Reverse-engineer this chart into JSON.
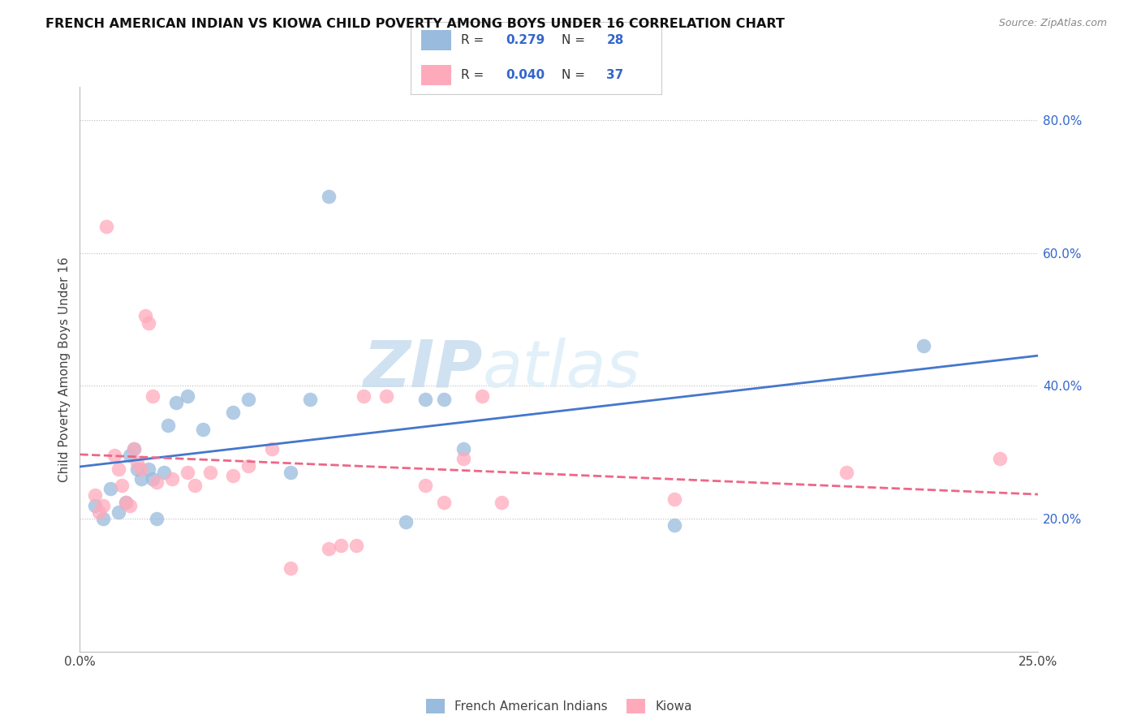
{
  "title": "FRENCH AMERICAN INDIAN VS KIOWA CHILD POVERTY AMONG BOYS UNDER 16 CORRELATION CHART",
  "source": "Source: ZipAtlas.com",
  "ylabel": "Child Poverty Among Boys Under 16",
  "xlim": [
    0.0,
    0.25
  ],
  "ylim": [
    0.0,
    0.85
  ],
  "xticks": [
    0.0,
    0.05,
    0.1,
    0.15,
    0.2,
    0.25
  ],
  "xticklabels": [
    "0.0%",
    "",
    "",
    "",
    "",
    "25.0%"
  ],
  "yticks_right": [
    0.2,
    0.4,
    0.6,
    0.8
  ],
  "ytickslabels_right": [
    "20.0%",
    "40.0%",
    "60.0%",
    "80.0%"
  ],
  "blue_color": "#99BBDD",
  "pink_color": "#FFAABB",
  "blue_line_color": "#4477CC",
  "pink_line_color": "#EE6688",
  "watermark_zip": "ZIP",
  "watermark_atlas": "atlas",
  "legend_r_blue": "0.279",
  "legend_n_blue": "28",
  "legend_r_pink": "0.040",
  "legend_n_pink": "37",
  "legend_label_blue": "French American Indians",
  "legend_label_pink": "Kiowa",
  "blue_x": [
    0.004,
    0.006,
    0.008,
    0.01,
    0.012,
    0.013,
    0.014,
    0.015,
    0.016,
    0.018,
    0.019,
    0.02,
    0.022,
    0.023,
    0.025,
    0.028,
    0.032,
    0.04,
    0.044,
    0.055,
    0.06,
    0.065,
    0.085,
    0.09,
    0.095,
    0.1,
    0.155,
    0.22
  ],
  "blue_y": [
    0.22,
    0.2,
    0.245,
    0.21,
    0.225,
    0.295,
    0.305,
    0.275,
    0.26,
    0.275,
    0.26,
    0.2,
    0.27,
    0.34,
    0.375,
    0.385,
    0.335,
    0.36,
    0.38,
    0.27,
    0.38,
    0.685,
    0.195,
    0.38,
    0.38,
    0.305,
    0.19,
    0.46
  ],
  "pink_x": [
    0.004,
    0.005,
    0.006,
    0.007,
    0.009,
    0.01,
    0.011,
    0.012,
    0.013,
    0.014,
    0.015,
    0.016,
    0.017,
    0.018,
    0.019,
    0.02,
    0.024,
    0.028,
    0.03,
    0.034,
    0.04,
    0.044,
    0.05,
    0.055,
    0.065,
    0.068,
    0.072,
    0.074,
    0.08,
    0.09,
    0.095,
    0.1,
    0.105,
    0.11,
    0.155,
    0.2,
    0.24
  ],
  "pink_y": [
    0.235,
    0.21,
    0.22,
    0.64,
    0.295,
    0.275,
    0.25,
    0.225,
    0.22,
    0.305,
    0.285,
    0.275,
    0.505,
    0.495,
    0.385,
    0.255,
    0.26,
    0.27,
    0.25,
    0.27,
    0.265,
    0.28,
    0.305,
    0.125,
    0.155,
    0.16,
    0.16,
    0.385,
    0.385,
    0.25,
    0.225,
    0.29,
    0.385,
    0.225,
    0.23,
    0.27,
    0.29
  ]
}
